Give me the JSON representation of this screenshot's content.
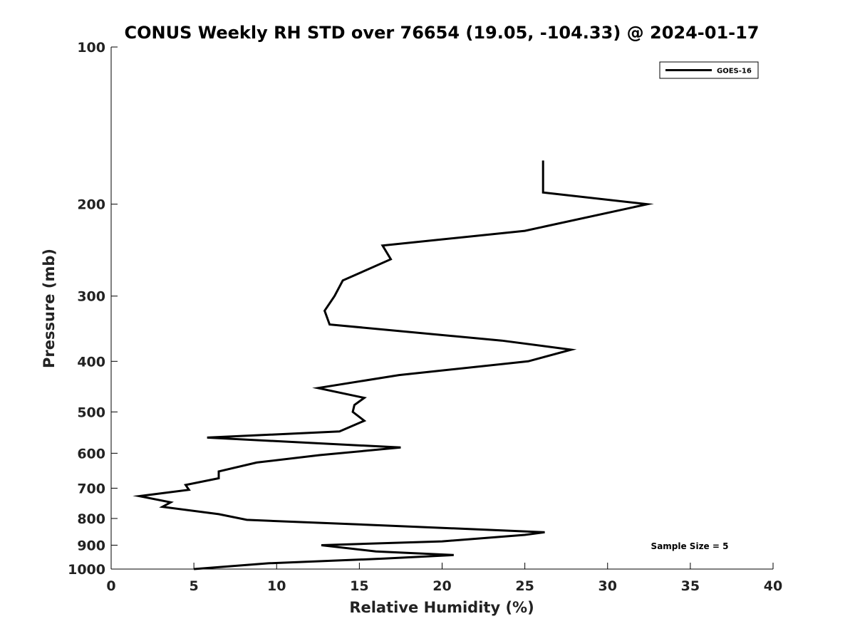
{
  "chart_data": {
    "type": "line",
    "title": "CONUS Weekly RH STD over 76654 (19.05, -104.33) @ 2024-01-17",
    "xlabel": "Relative Humidity (%)",
    "ylabel": "Pressure (mb)",
    "xlim": [
      0,
      40
    ],
    "ylim": [
      100,
      1000
    ],
    "yscale": "log",
    "y_reversed": true,
    "grid": false,
    "xticks": [
      0,
      5,
      10,
      15,
      20,
      25,
      30,
      35,
      40
    ],
    "yticks": [
      100,
      200,
      300,
      400,
      500,
      600,
      700,
      800,
      900,
      1000
    ],
    "legend_position": "top-right",
    "series": [
      {
        "name": "GOES-16",
        "color": "#000000",
        "x": [
          26.1,
          26.1,
          32.4,
          25.0,
          16.4,
          16.9,
          14.0,
          13.5,
          12.9,
          13.2,
          23.6,
          27.8,
          25.2,
          17.4,
          12.5,
          15.3,
          14.7,
          14.6,
          15.3,
          13.8,
          5.8,
          17.5,
          12.6,
          8.8,
          6.5,
          6.5,
          4.5,
          4.7,
          1.7,
          3.6,
          3.1,
          6.5,
          8.2,
          18.5,
          26.2,
          25.0,
          20.0,
          12.7,
          16.0,
          20.7,
          16.5,
          9.5,
          5.0
        ],
        "y": [
          165,
          190,
          200,
          225,
          240,
          255,
          280,
          300,
          320,
          340,
          365,
          380,
          400,
          425,
          450,
          470,
          485,
          500,
          520,
          545,
          560,
          585,
          605,
          625,
          650,
          670,
          690,
          705,
          725,
          745,
          760,
          785,
          805,
          830,
          850,
          860,
          885,
          900,
          925,
          940,
          955,
          975,
          1000
        ]
      }
    ],
    "annotations": [
      "Sample Size = 5"
    ]
  }
}
